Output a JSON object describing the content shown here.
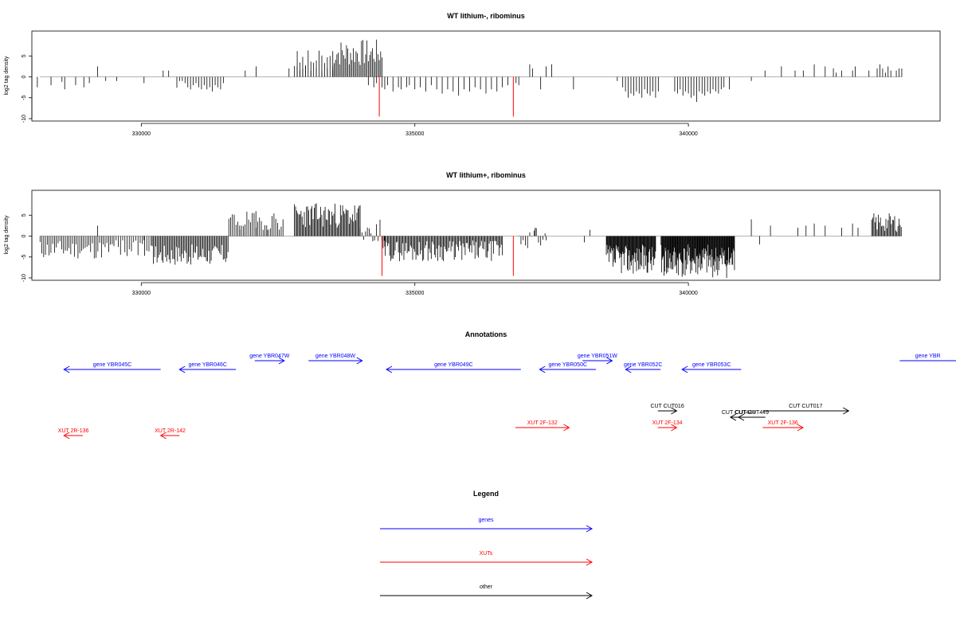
{
  "chart_data": [
    {
      "type": "bar",
      "title": "WT lithium-, ribominus",
      "ylabel": "log2 tag density",
      "xlabel": "",
      "xlim": [
        328000,
        344600
      ],
      "ylim": [
        -10,
        10
      ],
      "yticks": [
        -10,
        -5,
        0,
        5
      ],
      "xticks": [
        330000,
        335000,
        340000
      ],
      "grid": false,
      "highlight_color": "#ff0000",
      "series": [
        {
          "values": [
            [
              328100,
              -2.5
            ],
            [
              328350,
              -2
            ],
            [
              328550,
              -1.2
            ],
            [
              328600,
              -3
            ],
            [
              328800,
              -2
            ],
            [
              328950,
              -2.5
            ],
            [
              329050,
              -1.5
            ],
            [
              329200,
              2.5
            ],
            [
              329350,
              -1
            ],
            [
              329550,
              -1
            ],
            [
              330050,
              -1.5
            ],
            [
              330400,
              1.5
            ],
            [
              330500,
              1.5
            ],
            [
              330650,
              -2.6
            ],
            [
              330700,
              -1
            ],
            [
              330750,
              -1
            ],
            [
              330800,
              -1.5
            ],
            [
              330850,
              -2.5
            ],
            [
              330900,
              -3
            ],
            [
              330950,
              -2
            ],
            [
              331000,
              -1.5
            ],
            [
              331050,
              -2.5
            ],
            [
              331100,
              -3
            ],
            [
              331150,
              -2
            ],
            [
              331200,
              -3
            ],
            [
              331250,
              -2.5
            ],
            [
              331300,
              -3.5
            ],
            [
              331350,
              -2
            ],
            [
              331400,
              -2.5
            ],
            [
              331450,
              -3
            ],
            [
              331500,
              -1.5
            ],
            [
              331900,
              1.5
            ],
            [
              332100,
              2.5
            ],
            [
              332700,
              2
            ],
            [
              332850,
              2.5
            ],
            [
              332900,
              1.5
            ],
            [
              332950,
              2
            ],
            [
              333000,
              2.5
            ],
            [
              333100,
              1.5
            ],
            [
              333200,
              2
            ],
            [
              333300,
              1.5
            ],
            [
              333400,
              2
            ],
            [
              333500,
              2.5
            ],
            [
              334150,
              -2
            ],
            [
              334250,
              -2.5
            ],
            [
              334300,
              -1.5
            ],
            [
              334400,
              -2.5
            ],
            [
              334450,
              -3
            ],
            [
              334500,
              -2
            ],
            [
              334600,
              -3.5
            ],
            [
              334700,
              -2.5
            ],
            [
              334750,
              -3
            ],
            [
              334850,
              -2.5
            ],
            [
              334900,
              -2
            ],
            [
              335000,
              -3
            ],
            [
              335100,
              -2.5
            ],
            [
              335200,
              -3.5
            ],
            [
              335300,
              -2
            ],
            [
              335400,
              -3
            ],
            [
              335500,
              -4
            ],
            [
              335600,
              -3
            ],
            [
              335700,
              -3.5
            ],
            [
              335800,
              -4.5
            ],
            [
              335900,
              -3
            ],
            [
              336000,
              -3.5
            ],
            [
              336100,
              -2.5
            ],
            [
              336200,
              -3
            ],
            [
              336300,
              -4
            ],
            [
              336400,
              -3
            ],
            [
              336500,
              -3.5
            ],
            [
              336600,
              -2.5
            ],
            [
              336700,
              -2
            ],
            [
              336850,
              -1.5
            ],
            [
              336900,
              -2
            ],
            [
              337100,
              3
            ],
            [
              337150,
              2
            ],
            [
              337300,
              -3
            ],
            [
              337400,
              2.5
            ],
            [
              337500,
              3
            ],
            [
              337900,
              -3
            ],
            [
              338700,
              -1
            ],
            [
              338800,
              -2.5
            ],
            [
              338850,
              -3.5
            ],
            [
              338900,
              -5
            ],
            [
              338950,
              -4
            ],
            [
              339000,
              -4.5
            ],
            [
              339050,
              -3.5
            ],
            [
              339100,
              -4
            ],
            [
              339150,
              -5
            ],
            [
              339200,
              -3
            ],
            [
              339250,
              -4
            ],
            [
              339300,
              -4.5
            ],
            [
              339350,
              -3.5
            ],
            [
              339400,
              -5
            ],
            [
              339450,
              -3.5
            ],
            [
              339750,
              -3.5
            ],
            [
              339800,
              -4
            ],
            [
              339850,
              -3
            ],
            [
              339900,
              -4.5
            ],
            [
              339950,
              -3.5
            ],
            [
              340000,
              -4
            ],
            [
              340050,
              -5
            ],
            [
              340100,
              -4.5
            ],
            [
              340150,
              -6
            ],
            [
              340200,
              -3.5
            ],
            [
              340250,
              -4
            ],
            [
              340300,
              -4.5
            ],
            [
              340350,
              -3.5
            ],
            [
              340400,
              -4
            ],
            [
              340450,
              -3
            ],
            [
              340500,
              -3.5
            ],
            [
              340550,
              -4
            ],
            [
              340600,
              -3
            ],
            [
              340650,
              -2.5
            ],
            [
              340750,
              -3
            ],
            [
              341150,
              -1
            ],
            [
              341400,
              1.5
            ],
            [
              341700,
              2.5
            ],
            [
              341950,
              1.5
            ],
            [
              342100,
              1.5
            ],
            [
              342300,
              3
            ],
            [
              342500,
              2.5
            ],
            [
              342650,
              2
            ],
            [
              342700,
              1
            ],
            [
              342800,
              1.5
            ],
            [
              343000,
              1.5
            ],
            [
              343050,
              2.5
            ],
            [
              343300,
              1.5
            ],
            [
              343450,
              2
            ],
            [
              343500,
              3
            ],
            [
              343550,
              2
            ],
            [
              343600,
              1
            ],
            [
              343650,
              2.5
            ],
            [
              343700,
              1.5
            ],
            [
              343800,
              1.5
            ],
            [
              343850,
              2
            ],
            [
              343900,
              2
            ]
          ]
        }
      ],
      "dense_blocks": [
        {
          "from": 332800,
          "to": 333500,
          "min": 1.5,
          "max": 6.5,
          "step": 50,
          "seed": 3
        },
        {
          "from": 333500,
          "to": 334400,
          "min": 2.5,
          "max": 9,
          "step": 25,
          "seed": 7
        }
      ],
      "highlights": [
        [
          334350,
          -9.5
        ],
        [
          336800,
          -9.5
        ]
      ]
    },
    {
      "type": "bar",
      "title": "WT lithium+, ribominus",
      "ylabel": "log2 tag density",
      "xlabel": "",
      "xlim": [
        328000,
        344600
      ],
      "ylim": [
        -10,
        10
      ],
      "yticks": [
        -10,
        -5,
        0,
        5
      ],
      "xticks": [
        330000,
        335000,
        340000
      ],
      "grid": false,
      "highlight_color": "#ff0000",
      "series": [
        {
          "values": [
            [
              329200,
              2.5
            ],
            [
              330050,
              -1
            ],
            [
              331800,
              1.5
            ],
            [
              332100,
              2
            ],
            [
              332300,
              1.5
            ],
            [
              334450,
              -2.5
            ],
            [
              336000,
              -2.5
            ],
            [
              337200,
              2
            ],
            [
              337400,
              -1
            ],
            [
              338100,
              -1.5
            ],
            [
              338200,
              1.5
            ],
            [
              340000,
              -1.5
            ],
            [
              341150,
              4
            ],
            [
              341300,
              -2
            ],
            [
              341500,
              2.5
            ],
            [
              342000,
              2
            ],
            [
              342150,
              2.5
            ],
            [
              342300,
              3
            ],
            [
              342500,
              2.5
            ],
            [
              342800,
              2
            ],
            [
              343000,
              3
            ],
            [
              343100,
              2
            ]
          ]
        }
      ],
      "dense_blocks": [
        {
          "from": 328150,
          "to": 329500,
          "min": -5.5,
          "max": -1,
          "step": 33,
          "seed": 11
        },
        {
          "from": 329500,
          "to": 330200,
          "min": -5,
          "max": -0.5,
          "step": 40,
          "seed": 13
        },
        {
          "from": 330200,
          "to": 331600,
          "min": -7,
          "max": -2,
          "step": 22,
          "seed": 17
        },
        {
          "from": 331600,
          "to": 332600,
          "min": 1.5,
          "max": 6,
          "step": 33,
          "seed": 19
        },
        {
          "from": 332800,
          "to": 334000,
          "min": 2,
          "max": 8,
          "step": 20,
          "seed": 23
        },
        {
          "from": 334000,
          "to": 334400,
          "min": -1.5,
          "max": 4,
          "step": 33,
          "seed": 25
        },
        {
          "from": 334400,
          "to": 336600,
          "min": -6,
          "max": -1,
          "step": 20,
          "seed": 29
        },
        {
          "from": 336900,
          "to": 337400,
          "min": -3,
          "max": 2,
          "step": 40,
          "seed": 31
        },
        {
          "from": 338500,
          "to": 339400,
          "min": -9,
          "max": -2,
          "step": 12,
          "seed": 37
        },
        {
          "from": 339500,
          "to": 340850,
          "min": -10,
          "max": -2,
          "step": 11,
          "seed": 41
        },
        {
          "from": 343350,
          "to": 343900,
          "min": 1,
          "max": 5.5,
          "step": 20,
          "seed": 43
        }
      ],
      "highlights": [
        [
          334400,
          -9.5
        ],
        [
          336800,
          -9.5
        ]
      ]
    }
  ],
  "annotations": {
    "title": "Annotations",
    "xlim": [
      328000,
      344600
    ],
    "colors": {
      "genes": "#0000ff",
      "XUTs": "#ff0000",
      "other": "#000000"
    },
    "features": [
      {
        "label": "gene YBR045C",
        "type": "genes",
        "start": 328300,
        "end": 330100,
        "dir": "-",
        "level": 0
      },
      {
        "label": "gene YBR046C",
        "type": "genes",
        "start": 330450,
        "end": 331500,
        "dir": "-",
        "level": 0
      },
      {
        "label": "gene YBR047W",
        "type": "genes",
        "start": 331850,
        "end": 332400,
        "dir": "+",
        "level": 1
      },
      {
        "label": "gene YBR048W",
        "type": "genes",
        "start": 332850,
        "end": 333850,
        "dir": "+",
        "level": 1
      },
      {
        "label": "gene YBR049C",
        "type": "genes",
        "start": 334300,
        "end": 336800,
        "dir": "-",
        "level": 0
      },
      {
        "label": "gene YBR050C",
        "type": "genes",
        "start": 337150,
        "end": 338200,
        "dir": "-",
        "level": 0
      },
      {
        "label": "gene YBR051W",
        "type": "genes",
        "start": 337950,
        "end": 338500,
        "dir": "+",
        "level": 1
      },
      {
        "label": "gene YBR052C",
        "type": "genes",
        "start": 338750,
        "end": 339400,
        "dir": "-",
        "level": 0
      },
      {
        "label": "gene YBR053C",
        "type": "genes",
        "start": 339800,
        "end": 340900,
        "dir": "-",
        "level": 0
      },
      {
        "label": "gene YBR",
        "type": "genes",
        "start": 343850,
        "end": 345000,
        "dir": "+",
        "level": 1
      },
      {
        "label": "CUT CUT016",
        "type": "other",
        "start": 339350,
        "end": 339700,
        "dir": "+",
        "level": 2
      },
      {
        "label": "CUT CUT017",
        "type": "other",
        "start": 341300,
        "end": 342900,
        "dir": "+",
        "level": 2
      },
      {
        "label": "CUT CUT448",
        "type": "other",
        "start": 340700,
        "end": 341000,
        "dir": "-",
        "level": 3
      },
      {
        "label": "CUT CUT449",
        "type": "other",
        "start": 340850,
        "end": 341350,
        "dir": "-",
        "level": 3
      },
      {
        "label": "XUT 2F-132",
        "type": "XUTs",
        "start": 336700,
        "end": 337700,
        "dir": "+",
        "level": 4
      },
      {
        "label": "XUT 2F-134",
        "type": "XUTs",
        "start": 339350,
        "end": 339700,
        "dir": "+",
        "level": 4
      },
      {
        "label": "XUT 2F-136",
        "type": "XUTs",
        "start": 341300,
        "end": 342050,
        "dir": "+",
        "level": 4
      },
      {
        "label": "XUT 2R-136",
        "type": "XUTs",
        "start": 328300,
        "end": 328650,
        "dir": "-",
        "level": 5
      },
      {
        "label": "XUT 2R-142",
        "type": "XUTs",
        "start": 330100,
        "end": 330450,
        "dir": "-",
        "level": 5
      }
    ]
  },
  "legend": {
    "title": "Legend",
    "items": [
      {
        "label": "genes",
        "color": "#0000ff"
      },
      {
        "label": "XUTs",
        "color": "#ff0000"
      },
      {
        "label": "other",
        "color": "#000000"
      }
    ]
  }
}
